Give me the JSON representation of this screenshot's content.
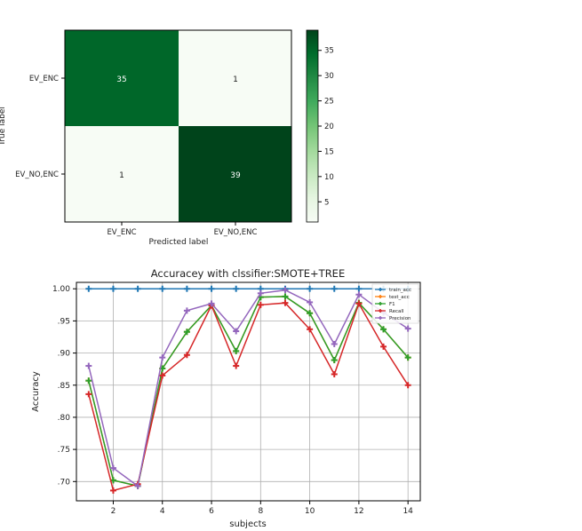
{
  "chart_data": [
    {
      "type": "heatmap",
      "row_labels": [
        "EV_ENC",
        "EV_NO,ENC"
      ],
      "col_labels": [
        "EV_ENC",
        "EV_NO,ENC"
      ],
      "values": [
        [
          35,
          1
        ],
        [
          1,
          39
        ]
      ],
      "xlabel": "Predicted label",
      "ylabel": "True label",
      "colorbar": {
        "ticks": [
          5,
          10,
          15,
          20,
          25,
          30,
          35
        ],
        "range": [
          1,
          39
        ],
        "colormap": "Greens"
      }
    },
    {
      "type": "line",
      "title": "Accuracey with clssifier:SMOTE+TREE",
      "xlabel": "subjects",
      "ylabel": "Accuracy",
      "xlim": [
        0.5,
        14.5
      ],
      "ylim": [
        0.67,
        1.01
      ],
      "xticks": [
        2,
        4,
        6,
        8,
        10,
        12,
        14
      ],
      "yticks": [
        0.7,
        0.75,
        0.8,
        0.85,
        0.9,
        0.95,
        1.0
      ],
      "ytick_labels": [
        ".70",
        ".75",
        ".80",
        ".85",
        ".90",
        ".95",
        "1.00"
      ],
      "grid": true,
      "legend_position": "top-right",
      "x": [
        1,
        2,
        3,
        4,
        5,
        6,
        7,
        8,
        9,
        10,
        11,
        12,
        13,
        14
      ],
      "series": [
        {
          "name": "train_acc",
          "color": "#1f77b4",
          "values": [
            1.0,
            1.0,
            1.0,
            1.0,
            1.0,
            1.0,
            1.0,
            1.0,
            1.0,
            1.0,
            1.0,
            1.0,
            1.0,
            1.0
          ]
        },
        {
          "name": "test_acc",
          "color": "#ff7f0e",
          "values": [
            0.857,
            0.702,
            0.693,
            0.876,
            0.933,
            0.974,
            0.903,
            0.987,
            0.988,
            0.962,
            0.889,
            0.978,
            0.937,
            0.893
          ]
        },
        {
          "name": "F1",
          "color": "#2ca02c",
          "values": [
            0.857,
            0.702,
            0.693,
            0.876,
            0.933,
            0.974,
            0.903,
            0.987,
            0.988,
            0.962,
            0.889,
            0.978,
            0.937,
            0.893
          ]
        },
        {
          "name": "Recall",
          "color": "#d62728",
          "values": [
            0.836,
            0.686,
            0.696,
            0.865,
            0.897,
            0.974,
            0.88,
            0.975,
            0.978,
            0.937,
            0.867,
            0.977,
            0.91,
            0.85
          ]
        },
        {
          "name": "Precision",
          "color": "#9467bd",
          "values": [
            0.88,
            0.721,
            0.693,
            0.893,
            0.966,
            0.977,
            0.934,
            0.993,
            0.998,
            0.979,
            0.914,
            0.991,
            0.963,
            0.938
          ]
        }
      ]
    }
  ]
}
